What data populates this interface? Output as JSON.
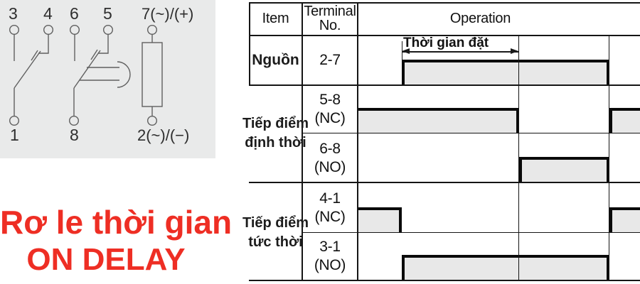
{
  "colors": {
    "accent_red": "#ee2e24",
    "panel_gray": "#e9eaea",
    "wave_fill": "#e8e8e8",
    "line_dark": "#151515"
  },
  "title": {
    "line1": "Rơ le thời gian",
    "line2": "ON DELAY"
  },
  "schematic": {
    "labels": {
      "t3": "3",
      "t4": "4",
      "t6": "6",
      "t5": "5",
      "t7": "7(~)/(+)",
      "t1": "1",
      "t8": "8",
      "t2": "2(~)/(−)"
    }
  },
  "table": {
    "header": {
      "item": "Item",
      "terminal_line1": "Terminal",
      "terminal_line2": "No.",
      "operation": "Operation"
    },
    "annotation": "Thời gian đặt",
    "item_labels": {
      "power": "Nguồn",
      "timed_line1": "Tiếp điểm",
      "timed_line2": "định thời",
      "instant_line1": "Tiếp điểm",
      "instant_line2": "tức thời"
    },
    "rows": [
      {
        "num": "2-7",
        "type": ""
      },
      {
        "num": "5-8",
        "type": "(NC)"
      },
      {
        "num": "6-8",
        "type": "(NO)"
      },
      {
        "num": "4-1",
        "type": "(NC)"
      },
      {
        "num": "3-1",
        "type": "(NO)"
      }
    ]
  },
  "chart_data": {
    "type": "timing",
    "time_points": [
      "start",
      "power_on",
      "time_up",
      "power_off",
      "end"
    ],
    "set_time_label": "Thời gian đặt",
    "set_time_span": [
      "power_on",
      "time_up"
    ],
    "signals": [
      {
        "name": "Nguồn 2-7",
        "high": [
          [
            "power_on",
            "power_off"
          ]
        ]
      },
      {
        "name": "5-8 (NC)",
        "high": [
          [
            "start",
            "time_up"
          ],
          [
            "power_off",
            "end"
          ]
        ]
      },
      {
        "name": "6-8 (NO)",
        "high": [
          [
            "time_up",
            "power_off"
          ]
        ]
      },
      {
        "name": "4-1 (NC)",
        "high": [
          [
            "start",
            "power_on"
          ],
          [
            "power_off",
            "end"
          ]
        ]
      },
      {
        "name": "3-1 (NO)",
        "high": [
          [
            "power_on",
            "power_off"
          ]
        ]
      }
    ]
  }
}
